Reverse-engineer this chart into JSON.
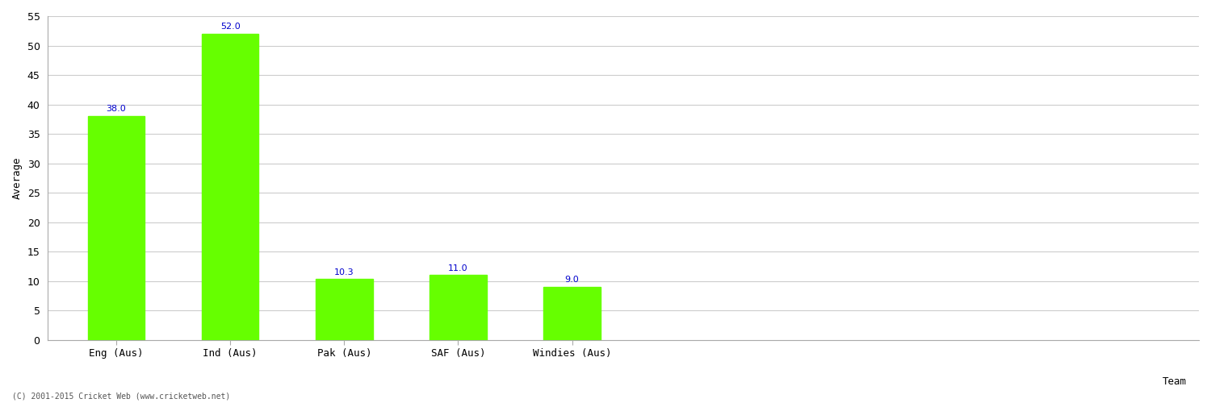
{
  "categories": [
    "Eng (Aus)",
    "Ind (Aus)",
    "Pak (Aus)",
    "SAF (Aus)",
    "Windies (Aus)"
  ],
  "values": [
    38.0,
    52.0,
    10.3,
    11.0,
    9.0
  ],
  "bar_color": "#66ff00",
  "label_color": "#0000cc",
  "xlabel": "Team",
  "ylabel": "Average",
  "ylim": [
    0,
    55
  ],
  "yticks": [
    0,
    5,
    10,
    15,
    20,
    25,
    30,
    35,
    40,
    45,
    50,
    55
  ],
  "background_color": "#ffffff",
  "grid_color": "#cccccc",
  "footnote": "(C) 2001-2015 Cricket Web (www.cricketweb.net)",
  "label_fontsize": 8,
  "axis_fontsize": 9,
  "tick_fontsize": 9,
  "bar_width": 0.5
}
